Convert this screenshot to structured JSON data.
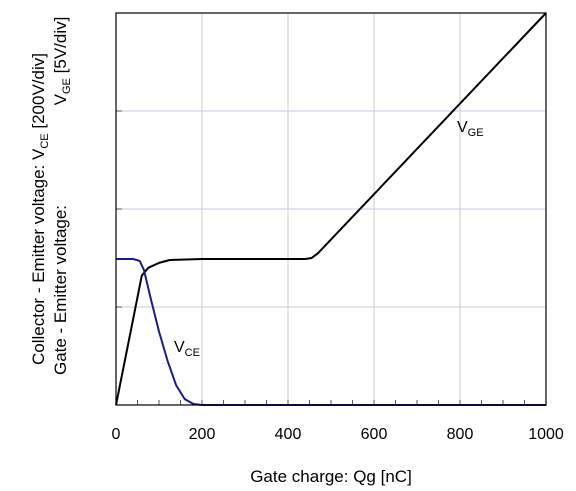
{
  "chart_data": {
    "type": "line",
    "xlabel": "Gate charge: Qg [nC]",
    "ylabel_left": {
      "line1": "Collector - Emitter voltage: V",
      "line1_sub": "CE",
      "line1_unit": "[200V/div]",
      "line2": "Gate - Emitter voltage:",
      "line2_vge": "V",
      "line2_sub": "GE",
      "line2_unit": "[5V/div]"
    },
    "xlim": [
      0,
      1000
    ],
    "ylim_divisions": [
      0,
      4
    ],
    "x_ticks": [
      0,
      200,
      400,
      600,
      800,
      1000
    ],
    "x_tick_labels": [
      "0",
      "200",
      "400",
      "600",
      "800",
      "1000"
    ],
    "grid": true,
    "series": [
      {
        "name": "VGE",
        "label_main": "V",
        "label_sub": "GE",
        "color": "#000000",
        "points": [
          [
            0,
            0
          ],
          [
            60,
            1.32
          ],
          [
            75,
            1.4
          ],
          [
            100,
            1.45
          ],
          [
            125,
            1.48
          ],
          [
            200,
            1.49
          ],
          [
            300,
            1.49
          ],
          [
            440,
            1.49
          ],
          [
            455,
            1.5
          ],
          [
            470,
            1.55
          ],
          [
            1000,
            4.0
          ]
        ]
      },
      {
        "name": "VCE",
        "label_main": "V",
        "label_sub": "CE",
        "color": "#1a1a8c",
        "points": [
          [
            0,
            1.49
          ],
          [
            40,
            1.49
          ],
          [
            55,
            1.47
          ],
          [
            65,
            1.38
          ],
          [
            80,
            1.1
          ],
          [
            100,
            0.75
          ],
          [
            120,
            0.45
          ],
          [
            140,
            0.2
          ],
          [
            160,
            0.06
          ],
          [
            180,
            0.01
          ],
          [
            200,
            0
          ],
          [
            1000,
            0
          ]
        ]
      }
    ]
  }
}
